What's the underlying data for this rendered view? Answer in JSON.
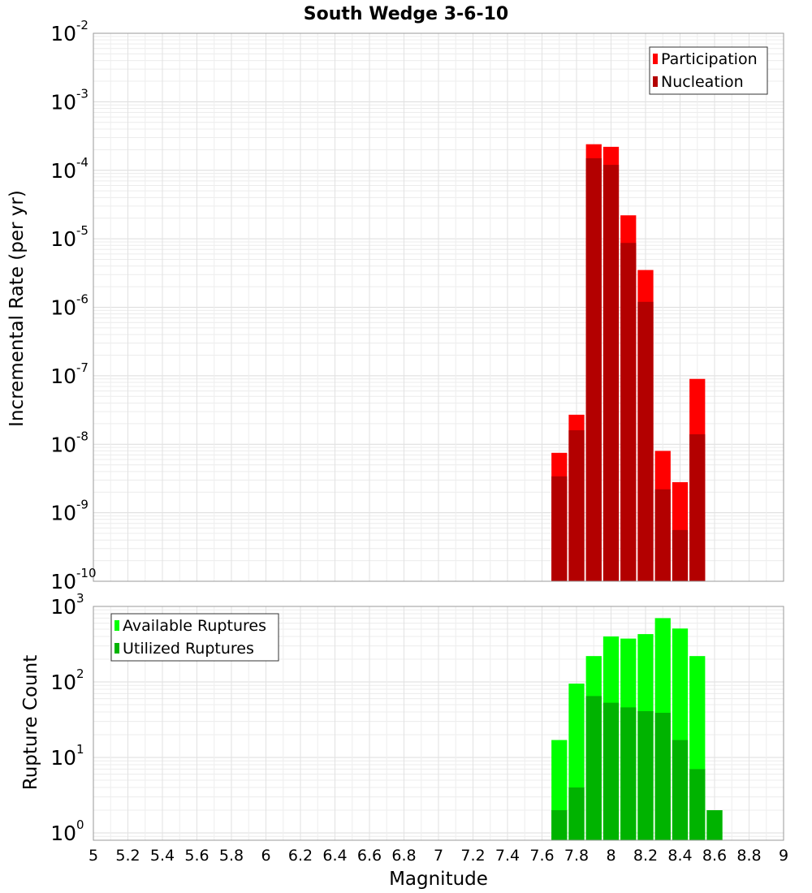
{
  "chart_data": [
    {
      "type": "bar",
      "title": "South Wedge 3-6-10",
      "xlabel": "",
      "ylabel": "Incremental Rate (per yr)",
      "y_scale": "log",
      "y_tick_exponents": [
        -10,
        -9,
        -8,
        -7,
        -6,
        -5,
        -4,
        -3,
        -2
      ],
      "ylim": [
        1e-10,
        0.01
      ],
      "xlim": [
        5,
        9
      ],
      "grid": true,
      "legend_position": "top-right",
      "x": [
        7.7,
        7.8,
        7.9,
        8.0,
        8.1,
        8.2,
        8.3,
        8.4,
        8.5,
        8.6
      ],
      "series": [
        {
          "name": "Participation",
          "color": "#ff0000",
          "values": [
            7.5e-09,
            2.7e-08,
            0.00024,
            0.00022,
            2.2e-05,
            3.5e-06,
            8e-09,
            2.8e-09,
            9e-08,
            null
          ]
        },
        {
          "name": "Nucleation",
          "color": "#b30000",
          "values": [
            3.4e-09,
            1.6e-08,
            0.00015,
            0.00012,
            8.7e-06,
            1.2e-06,
            2.2e-09,
            5.6e-10,
            1.4e-08,
            null
          ]
        }
      ]
    },
    {
      "type": "bar",
      "title": "",
      "xlabel": "Magnitude",
      "ylabel": "Rupture Count",
      "y_scale": "log",
      "y_tick_exponents": [
        0,
        1,
        2,
        3
      ],
      "ylim": [
        0.8,
        1000
      ],
      "xlim": [
        5,
        9
      ],
      "x_ticks": [
        "5",
        "5.2",
        "5.4",
        "5.6",
        "5.8",
        "6",
        "6.2",
        "6.4",
        "6.6",
        "6.8",
        "7",
        "7.2",
        "7.4",
        "7.6",
        "7.8",
        "8",
        "8.2",
        "8.4",
        "8.6",
        "8.8",
        "9"
      ],
      "grid": true,
      "legend_position": "top-left",
      "x": [
        7.7,
        7.8,
        7.9,
        8.0,
        8.1,
        8.2,
        8.3,
        8.4,
        8.5,
        8.6
      ],
      "series": [
        {
          "name": "Available Ruptures",
          "color": "#00ff00",
          "values": [
            17,
            95,
            220,
            400,
            375,
            430,
            700,
            510,
            220,
            2
          ]
        },
        {
          "name": "Utilized Ruptures",
          "color": "#00b300",
          "values": [
            2,
            4,
            65,
            53,
            46,
            41,
            39,
            17,
            7,
            2
          ]
        }
      ]
    }
  ]
}
